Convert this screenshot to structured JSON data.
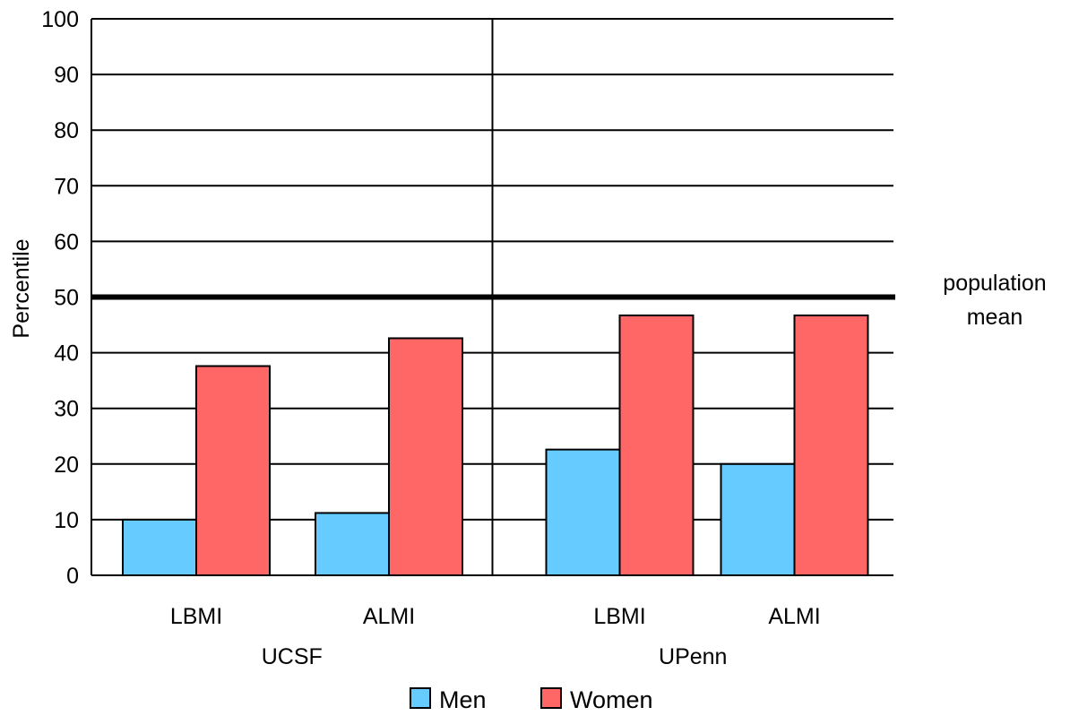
{
  "chart_data": {
    "type": "bar",
    "ylabel": "Percentile",
    "ylim": [
      0,
      100
    ],
    "yticks": [
      0,
      10,
      20,
      30,
      40,
      50,
      60,
      70,
      80,
      90,
      100
    ],
    "grid": "horizontal",
    "groups": [
      {
        "name": "UCSF",
        "categories": [
          "LBMI",
          "ALMI"
        ],
        "series": [
          {
            "name": "Men",
            "values": [
              10,
              11.2
            ]
          },
          {
            "name": "Women",
            "values": [
              37.6,
              42.6
            ]
          }
        ]
      },
      {
        "name": "UPenn",
        "categories": [
          "LBMI",
          "ALMI"
        ],
        "series": [
          {
            "name": "Men",
            "values": [
              22.6,
              20
            ]
          },
          {
            "name": "Women",
            "values": [
              46.7,
              46.7
            ]
          }
        ]
      }
    ],
    "colors": {
      "Men": "#66ccff",
      "Women": "#ff6666"
    },
    "reference_line": {
      "value": 50,
      "label_lines": [
        "population",
        "mean"
      ]
    },
    "legend": {
      "placement": "bottom-center",
      "entries": [
        "Men",
        "Women"
      ]
    }
  }
}
